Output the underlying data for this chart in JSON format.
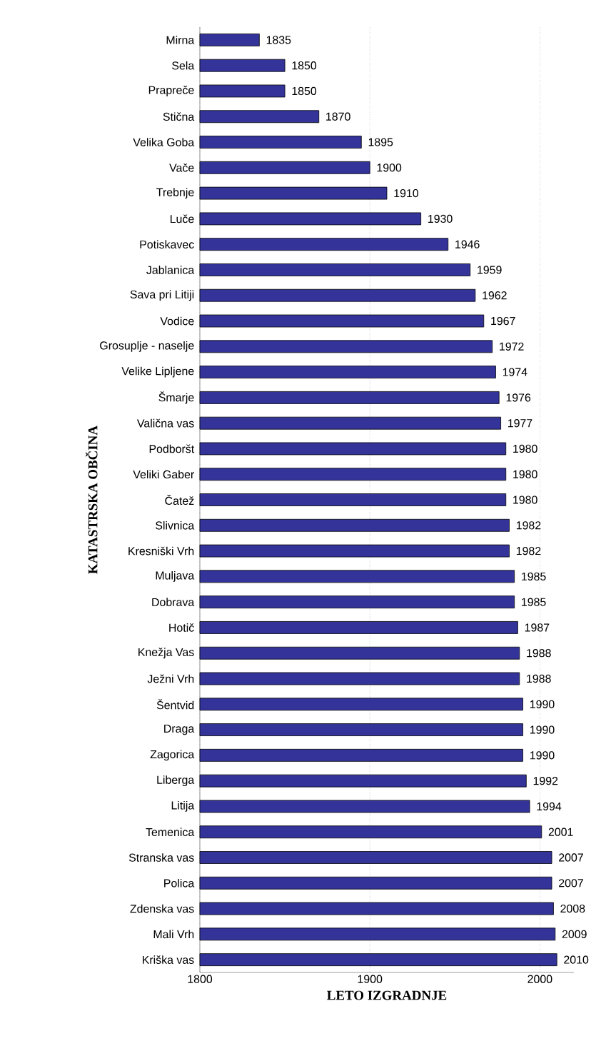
{
  "chart_data": {
    "type": "bar",
    "orientation": "horizontal",
    "xlabel": "LETO IZGRADNJE",
    "ylabel": "KATASTRSKA OBČINA",
    "categories": [
      "Mirna",
      "Sela",
      "Prapreče",
      "Stična",
      "Velika Goba",
      "Vače",
      "Trebnje",
      "Luče",
      "Potiskavec",
      "Jablanica",
      "Sava pri Litiji",
      "Vodice",
      "Grosuplje - naselje",
      "Velike Lipljene",
      "Šmarje",
      "Valična vas",
      "Podboršt",
      "Veliki Gaber",
      "Čatež",
      "Slivnica",
      "Kresniški Vrh",
      "Muljava",
      "Dobrava",
      "Hotič",
      "Knežja Vas",
      "Ježni Vrh",
      "Šentvid",
      "Draga",
      "Zagorica",
      "Liberga",
      "Litija",
      "Temenica",
      "Stranska vas",
      "Polica",
      "Zdenska vas",
      "Mali Vrh",
      "Kriška vas"
    ],
    "values": [
      1835,
      1850,
      1850,
      1870,
      1895,
      1900,
      1910,
      1930,
      1946,
      1959,
      1962,
      1967,
      1972,
      1974,
      1976,
      1977,
      1980,
      1980,
      1980,
      1982,
      1982,
      1985,
      1985,
      1987,
      1988,
      1988,
      1990,
      1990,
      1990,
      1992,
      1994,
      2001,
      2007,
      2007,
      2008,
      2009,
      2010
    ],
    "color": "#333399",
    "xlim": [
      1800,
      2020
    ],
    "xticks": [
      1800,
      1900,
      2000
    ],
    "grid": "x",
    "data_labels": true
  }
}
